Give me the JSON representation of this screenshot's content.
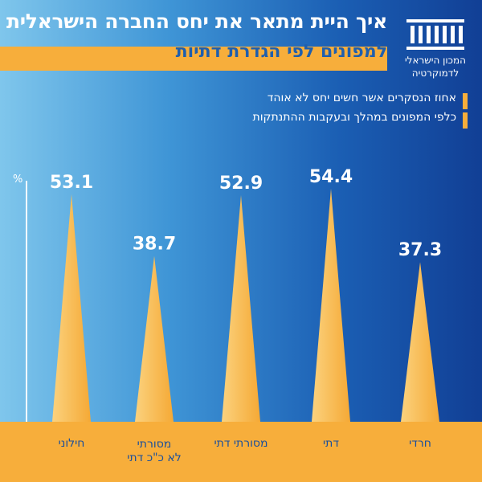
{
  "header": {
    "title_line1": "איך היית מתאר את יחס החברה הישראלית",
    "title_line2": "למפונים לפי הגדרת דתיות"
  },
  "logo": {
    "line1": "המכון הישראלי",
    "line2": "לדמוקרטיה",
    "icon": "institute-columns-icon"
  },
  "subtitle": {
    "line1": "אחוז הנסקרים אשר חשים יחס לא אוהד",
    "line2": "כלפי המפונים במהלך ובעקבות ההתנתקות"
  },
  "colors": {
    "accent": "#f7ae3b",
    "band": "#f7ae3b",
    "spike_light": "#fbd27e",
    "spike_dark": "#f5a935"
  },
  "chart_data": {
    "type": "bar",
    "categories": [
      "חילוני",
      "מסורתי\nלא כ\"כ דתי",
      "מסורתי דתי",
      "דתי",
      "חרדי"
    ],
    "values": [
      53.1,
      38.7,
      52.9,
      54.4,
      37.3
    ],
    "ylabel": "%",
    "ylim": [
      0,
      60
    ],
    "grid": false,
    "legend": "none"
  }
}
